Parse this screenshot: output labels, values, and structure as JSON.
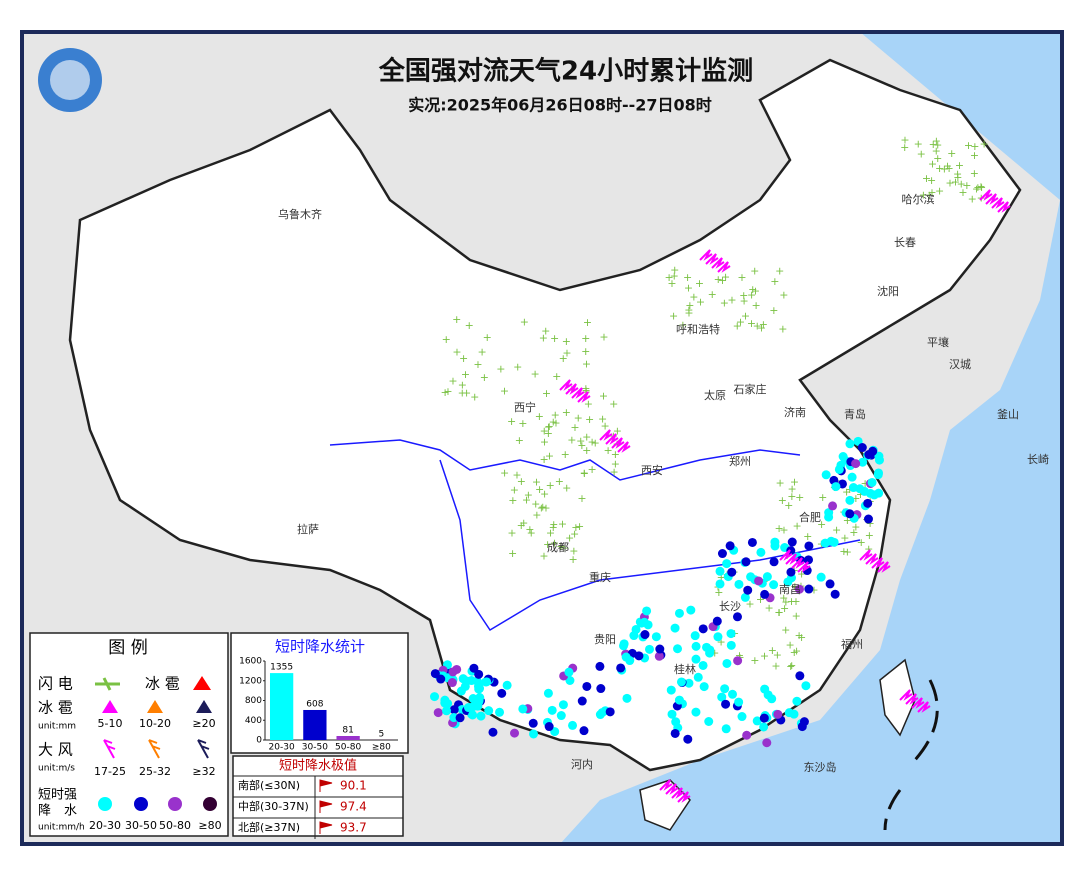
{
  "header": {
    "title": "全国强对流天气24小时累计监测",
    "subtitle": "实况:2025年06月26日08时--27日08时"
  },
  "places": [
    "乌鲁木齐",
    "哈尔滨",
    "长春",
    "沈阳",
    "呼和浩特",
    "太原",
    "石家庄",
    "济南",
    "青岛",
    "郑州",
    "西安",
    "西宁",
    "拉萨",
    "成都",
    "重庆",
    "长沙",
    "南昌",
    "贵阳",
    "桂林",
    "福州",
    "合肥",
    "河内",
    "东沙岛",
    "平壤",
    "汉城",
    "釜山",
    "长崎"
  ],
  "legend": {
    "title": "图 例",
    "lightning": "闪 电",
    "hail_top": "冰 雹",
    "hail": {
      "name": "冰 雹",
      "unit": "unit:mm",
      "ranges": [
        "5-10",
        "10-20",
        "≥20"
      ]
    },
    "wind": {
      "name": "大 风",
      "unit": "unit:m/s",
      "ranges": [
        "17-25",
        "25-32",
        "≥32"
      ]
    },
    "rain": {
      "name": [
        "短时强",
        "降　水"
      ],
      "unit": "unit:mm/h",
      "ranges": [
        "20-30",
        "30-50",
        "50-80",
        "≥80"
      ]
    }
  },
  "chart_data": {
    "type": "bar",
    "title": "短时降水统计",
    "categories": [
      "20-30",
      "30-50",
      "50-80",
      "≥80"
    ],
    "values": [
      1355,
      608,
      81,
      5
    ],
    "colors": [
      "#00ffff",
      "#0000cd",
      "#9932cc",
      "#330033"
    ],
    "ylim": [
      0,
      1600
    ],
    "yticks": [
      0,
      400,
      800,
      1200,
      1600
    ]
  },
  "extremes": {
    "title": "短时降水极值",
    "rows": [
      {
        "region": "南部(≤30N)",
        "value": 90.1
      },
      {
        "region": "中部(30-37N)",
        "value": 97.4
      },
      {
        "region": "北部(≥37N)",
        "value": 93.7
      }
    ]
  }
}
